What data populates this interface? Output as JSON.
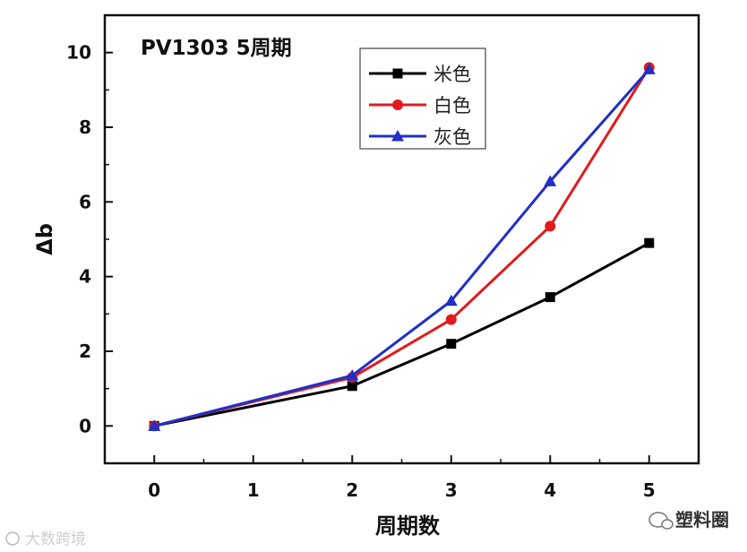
{
  "chart_data": {
    "type": "line",
    "title": "PV1303 5周期",
    "xlabel": "周期数",
    "ylabel": "Δb",
    "x": [
      0,
      2,
      3,
      4,
      5
    ],
    "xticks": [
      "0",
      "1",
      "2",
      "3",
      "4",
      "5"
    ],
    "yticks": [
      "0",
      "2",
      "4",
      "6",
      "8",
      "10"
    ],
    "xlim": [
      -0.5,
      5.5
    ],
    "ylim": [
      -1,
      11
    ],
    "legend_position": "top-center",
    "series": [
      {
        "name": "米色",
        "color": "#000000",
        "marker": "square",
        "values": [
          0,
          1.07,
          2.2,
          3.45,
          4.9
        ]
      },
      {
        "name": "白色",
        "color": "#e01b1b",
        "marker": "circle",
        "values": [
          0,
          1.3,
          2.85,
          5.35,
          9.6
        ]
      },
      {
        "name": "灰色",
        "color": "#1f2fc8",
        "marker": "triangle",
        "values": [
          0,
          1.35,
          3.35,
          6.55,
          9.55
        ]
      }
    ]
  },
  "watermarks": {
    "left": "大数跨境",
    "right": "塑料圈"
  }
}
